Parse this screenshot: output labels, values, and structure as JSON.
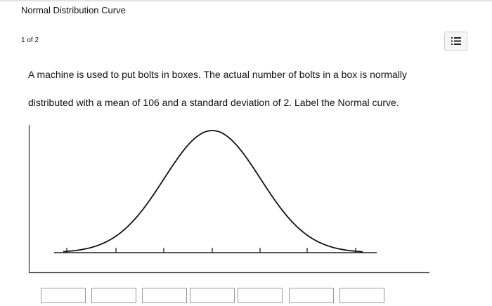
{
  "header": {
    "title": "Normal Distribution Curve",
    "page": "1 of 2"
  },
  "question": {
    "lines": [
      "A machine is used to put bolts in boxes.  The actual number of bolts in a box is normally",
      "distributed with a mean of 106 and a standard deviation of 2.  Label the Normal curve."
    ]
  }
}
